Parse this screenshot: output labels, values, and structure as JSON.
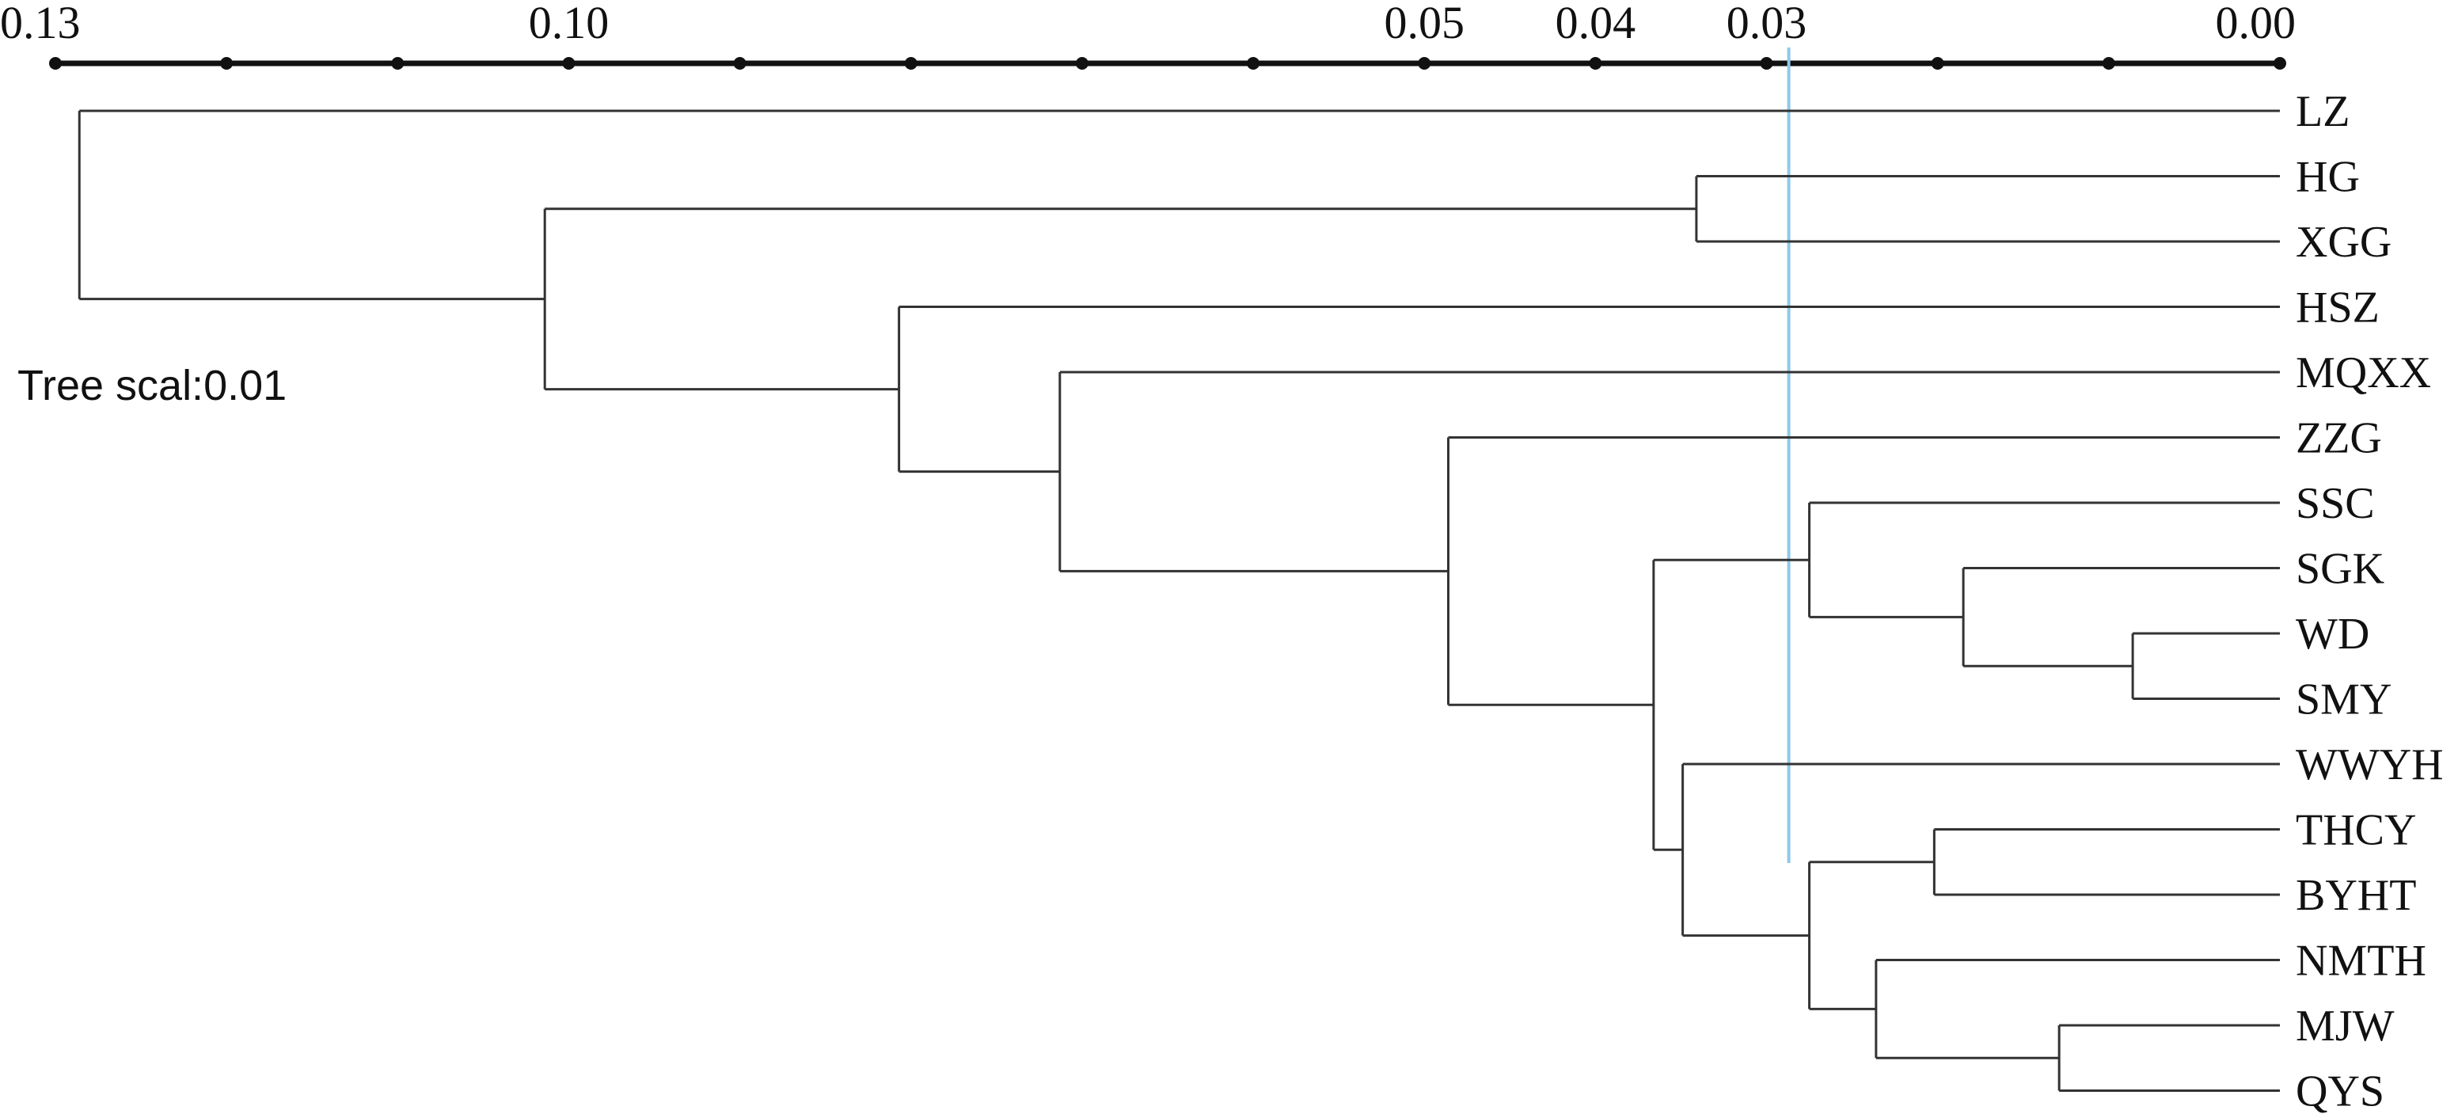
{
  "axis": {
    "labels": [
      {
        "value": 0.13,
        "text": "0.13"
      },
      {
        "value": 0.1,
        "text": "0.10"
      },
      {
        "value": 0.05,
        "text": "0.05"
      },
      {
        "value": 0.04,
        "text": "0.04"
      },
      {
        "value": 0.03,
        "text": "0.03"
      },
      {
        "value": 0.0,
        "text": "0.00"
      }
    ],
    "dot_values": [
      0.13,
      0.12,
      0.11,
      0.1,
      0.09,
      0.08,
      0.07,
      0.06,
      0.05,
      0.04,
      0.03,
      0.02,
      0.01,
      0.0
    ],
    "min": 0.0,
    "max": 0.13
  },
  "scale_note": "Tree scal:0.01",
  "cut_value": 0.0287,
  "colors": {
    "branch": "#333333",
    "cut_line": "#8fc8e8"
  },
  "leaves": [
    "LZ",
    "HG",
    "XGG",
    "HSZ",
    "MQXX",
    "ZZG",
    "SSC",
    "SGK",
    "WD",
    "SMY",
    "WWYH",
    "THCY",
    "BYHT",
    "NMTH",
    "MJW",
    "QYS"
  ],
  "tree": {
    "h": 0.1286,
    "children": [
      {
        "leaf": "LZ"
      },
      {
        "h": 0.1014,
        "children": [
          {
            "h": 0.0341,
            "children": [
              {
                "leaf": "HG"
              },
              {
                "leaf": "XGG"
              }
            ]
          },
          {
            "h": 0.0807,
            "children": [
              {
                "leaf": "HSZ"
              },
              {
                "h": 0.0713,
                "children": [
                  {
                    "leaf": "MQXX"
                  },
                  {
                    "h": 0.0486,
                    "children": [
                      {
                        "leaf": "ZZG"
                      },
                      {
                        "h": 0.0366,
                        "children": [
                          {
                            "h": 0.0275,
                            "children": [
                              {
                                "leaf": "SSC"
                              },
                              {
                                "h": 0.0185,
                                "children": [
                                  {
                                    "leaf": "SGK"
                                  },
                                  {
                                    "h": 0.0086,
                                    "children": [
                                      {
                                        "leaf": "WD"
                                      },
                                      {
                                        "leaf": "SMY"
                                      }
                                    ]
                                  }
                                ]
                              }
                            ]
                          },
                          {
                            "h": 0.0349,
                            "children": [
                              {
                                "leaf": "WWYH"
                              },
                              {
                                "h": 0.0275,
                                "children": [
                                  {
                                    "h": 0.0202,
                                    "children": [
                                      {
                                        "leaf": "THCY"
                                      },
                                      {
                                        "leaf": "BYHT"
                                      }
                                    ]
                                  },
                                  {
                                    "h": 0.0236,
                                    "children": [
                                      {
                                        "leaf": "NMTH"
                                      },
                                      {
                                        "h": 0.0129,
                                        "children": [
                                          {
                                            "leaf": "MJW"
                                          },
                                          {
                                            "leaf": "QYS"
                                          }
                                        ]
                                      }
                                    ]
                                  }
                                ]
                              }
                            ]
                          }
                        ]
                      }
                    ]
                  }
                ]
              }
            ]
          }
        ]
      }
    ]
  }
}
